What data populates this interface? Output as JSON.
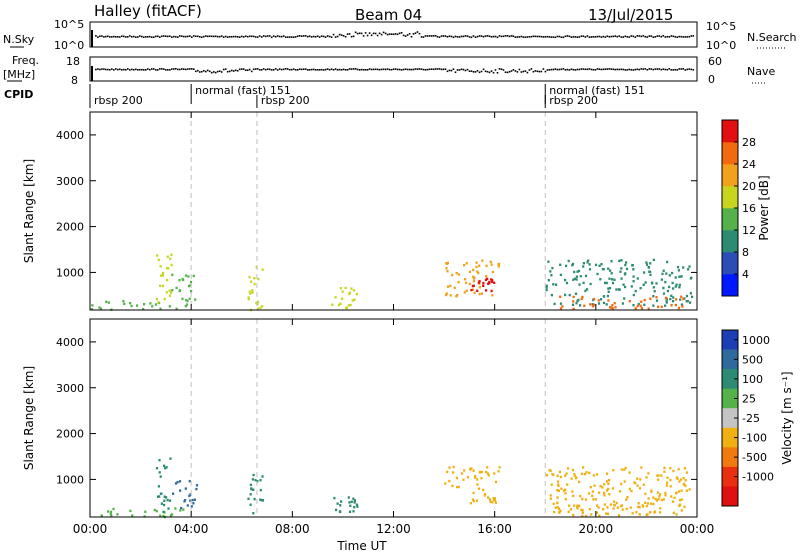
{
  "header": {
    "station": "Halley (fitACF)",
    "beam": "Beam 04",
    "date": "13/Jul/2015"
  },
  "top_panels": {
    "nsky_label": "N.Sky",
    "nsky_ticks": [
      "10^5",
      "10^0"
    ],
    "nsearch_label": "N.Search",
    "nsearch_ticks": [
      "10^5",
      "10^0"
    ],
    "freq_label": "Freq.",
    "freq_unit": "[MHz]",
    "freq_ticks": [
      "18",
      "8"
    ],
    "nave_label": "Nave",
    "nave_ticks": [
      "60",
      "0"
    ],
    "cpid_label": "CPID"
  },
  "cpid_segments": [
    {
      "label": "rbsp 200",
      "start_hour": 0.0,
      "row": "lower"
    },
    {
      "label": "normal (fast) 151",
      "start_hour": 4.0,
      "row": "upper"
    },
    {
      "label": "rbsp 200",
      "start_hour": 6.6,
      "row": "lower"
    },
    {
      "label": "normal (fast) 151",
      "start_hour": 18.0,
      "row": "upper"
    },
    {
      "label": "rbsp 200",
      "start_hour": 18.0,
      "row": "lower"
    }
  ],
  "mode_change_hours": [
    4.0,
    6.6,
    18.0
  ],
  "power_colorbar": {
    "title": "Power [dB]",
    "ticks": [
      "4",
      "8",
      "12",
      "16",
      "20",
      "24",
      "28"
    ],
    "colors": [
      "#0018ff",
      "#2a4db8",
      "#2e8b73",
      "#55b24a",
      "#c8d51e",
      "#f0a21c",
      "#f26a10",
      "#e21010"
    ]
  },
  "velocity_colorbar": {
    "title": "Velocity [m s⁻¹]",
    "ticks": [
      "1000",
      "500",
      "100",
      "25",
      "-25",
      "-100",
      "-500",
      "-1000"
    ],
    "colors": [
      "#1d3fb5",
      "#2e6a9c",
      "#2e8b73",
      "#55b24a",
      "#c4c4c4",
      "#f0b012",
      "#f07a10",
      "#e82f10",
      "#e01010"
    ]
  },
  "chart_data": [
    {
      "type": "heatmap",
      "title": "Power",
      "xlabel": "",
      "ylabel": "Slant Range [km]",
      "xlim": [
        0,
        24
      ],
      "ylim": [
        180,
        4500
      ],
      "yticks": [
        1000,
        2000,
        3000,
        4000
      ],
      "xticks": [
        "00:00",
        "04:00",
        "08:00",
        "12:00",
        "16:00",
        "20:00",
        "00:00"
      ],
      "colorbar": "Power [dB]",
      "scatter_regions": [
        {
          "hour_range": [
            0.0,
            3.8
          ],
          "range_km": [
            200,
            400
          ],
          "value": 12
        },
        {
          "hour_range": [
            2.6,
            3.2
          ],
          "range_km": [
            300,
            1500
          ],
          "value": 16
        },
        {
          "hour_range": [
            3.2,
            4.2
          ],
          "range_km": [
            400,
            1000
          ],
          "value": 12
        },
        {
          "hour_range": [
            6.2,
            6.8
          ],
          "range_km": [
            200,
            1200
          ],
          "value": 16
        },
        {
          "hour_range": [
            9.5,
            10.6
          ],
          "range_km": [
            250,
            700
          ],
          "value": 16
        },
        {
          "hour_range": [
            14.0,
            16.2
          ],
          "range_km": [
            500,
            1300
          ],
          "value": 20
        },
        {
          "hour_range": [
            15.0,
            16.0
          ],
          "range_km": [
            600,
            900
          ],
          "value": 28
        },
        {
          "hour_range": [
            18.0,
            23.8
          ],
          "range_km": [
            300,
            1300
          ],
          "value": 8
        },
        {
          "hour_range": [
            18.5,
            23.5
          ],
          "range_km": [
            220,
            500
          ],
          "value": 24
        }
      ]
    },
    {
      "type": "heatmap",
      "title": "Velocity",
      "xlabel": "Time UT",
      "ylabel": "Slant Range [km]",
      "xlim": [
        0,
        24
      ],
      "ylim": [
        180,
        4500
      ],
      "yticks": [
        1000,
        2000,
        3000,
        4000
      ],
      "xticks": [
        "00:00",
        "04:00",
        "08:00",
        "12:00",
        "16:00",
        "20:00",
        "00:00"
      ],
      "colorbar": "Velocity [m s⁻¹]",
      "scatter_regions": [
        {
          "hour_range": [
            0.0,
            3.8
          ],
          "range_km": [
            200,
            400
          ],
          "value": 25
        },
        {
          "hour_range": [
            2.6,
            3.2
          ],
          "range_km": [
            300,
            1500
          ],
          "value": 100
        },
        {
          "hour_range": [
            3.2,
            4.2
          ],
          "range_km": [
            400,
            1000
          ],
          "value": 500
        },
        {
          "hour_range": [
            6.2,
            6.8
          ],
          "range_km": [
            200,
            1200
          ],
          "value": 100
        },
        {
          "hour_range": [
            9.5,
            10.6
          ],
          "range_km": [
            250,
            700
          ],
          "value": 100
        },
        {
          "hour_range": [
            14.0,
            16.2
          ],
          "range_km": [
            500,
            1300
          ],
          "value": -100
        },
        {
          "hour_range": [
            18.0,
            23.8
          ],
          "range_km": [
            300,
            1300
          ],
          "value": -100
        },
        {
          "hour_range": [
            18.5,
            23.5
          ],
          "range_km": [
            220,
            500
          ],
          "value": -100
        }
      ]
    }
  ]
}
